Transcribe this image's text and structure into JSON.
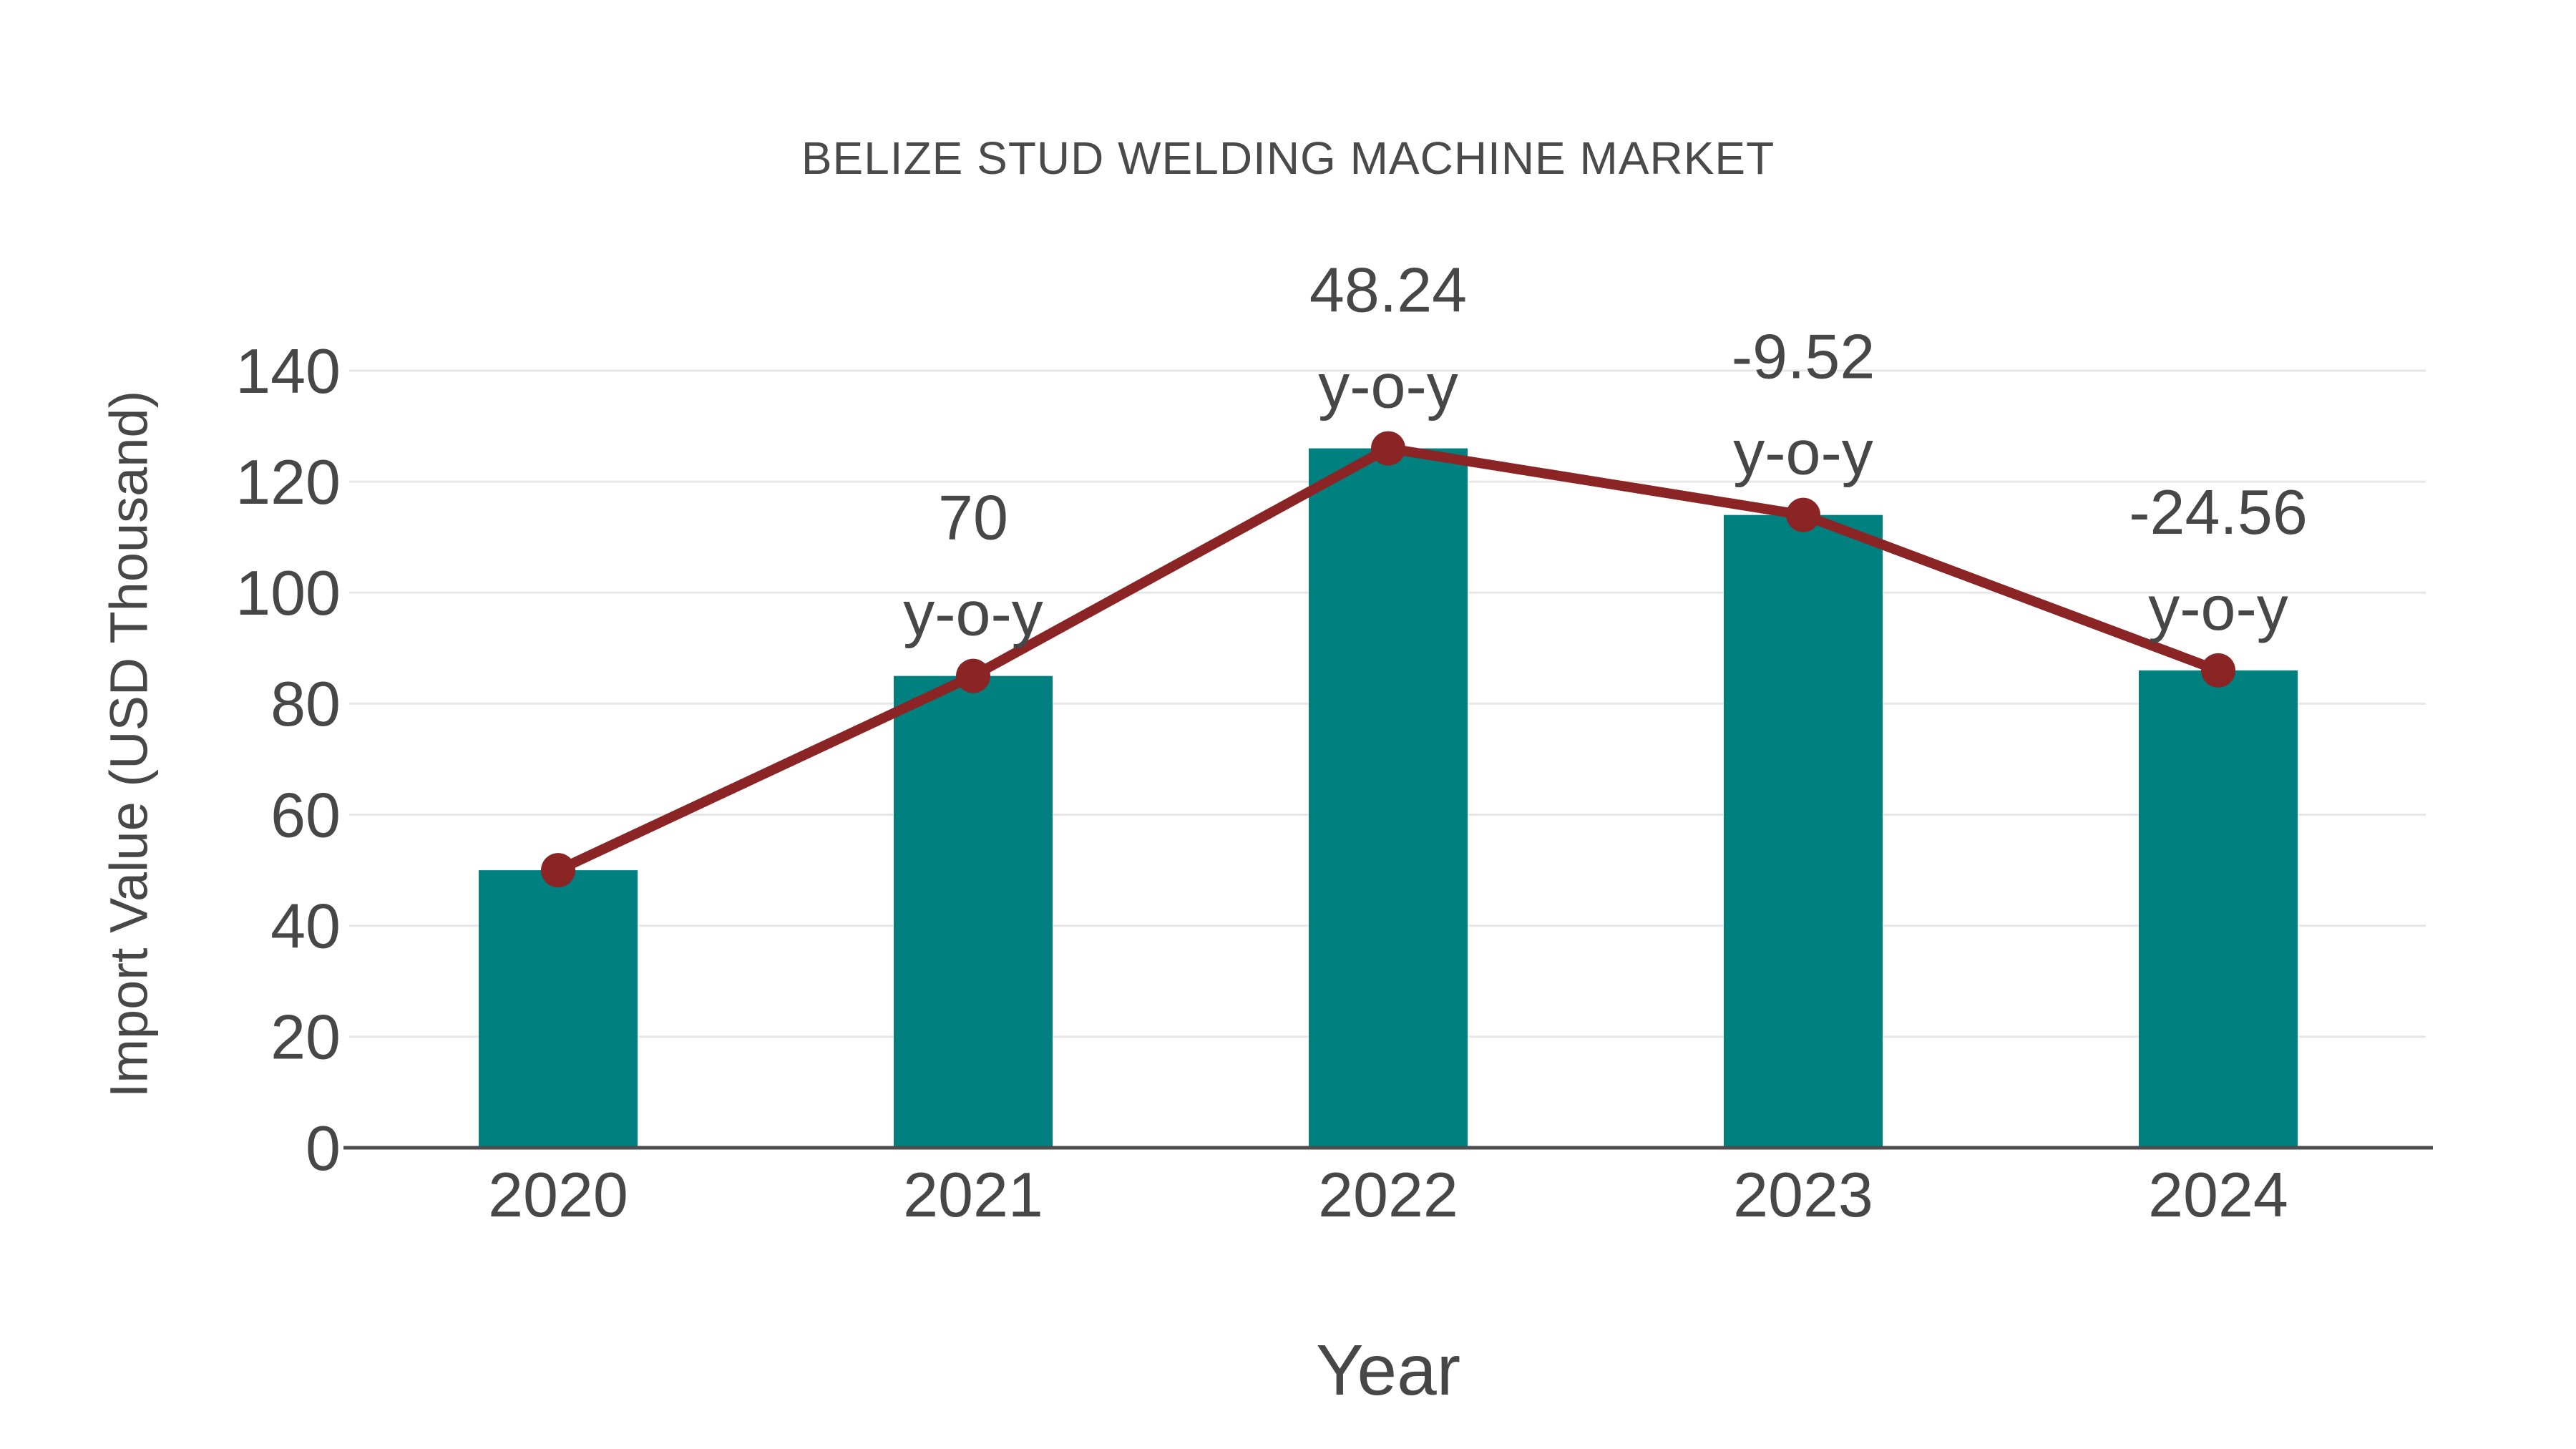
{
  "chart_data": {
    "type": "bar+line",
    "title": "BELIZE STUD WELDING MACHINE MARKET",
    "xlabel": "Year",
    "ylabel": "Import Value (USD Thousand)",
    "categories": [
      "2020",
      "2021",
      "2022",
      "2023",
      "2024"
    ],
    "series": [
      {
        "name": "Import Value (USD Thousand)",
        "type": "bar",
        "values": [
          50,
          85,
          126,
          114,
          86
        ],
        "color": "#018080"
      },
      {
        "name": "y-o-y growth line",
        "type": "line",
        "values": [
          50,
          85,
          126,
          114,
          86
        ],
        "color": "#8b2525"
      }
    ],
    "annotations": [
      {
        "category": "2020",
        "value_label": "",
        "sub_label": ""
      },
      {
        "category": "2021",
        "value_label": "70",
        "sub_label": "y-o-y"
      },
      {
        "category": "2022",
        "value_label": "48.24",
        "sub_label": "y-o-y"
      },
      {
        "category": "2023",
        "value_label": "-9.52",
        "sub_label": "y-o-y"
      },
      {
        "category": "2024",
        "value_label": "-24.56",
        "sub_label": "y-o-y"
      }
    ],
    "yticks": [
      0,
      20,
      40,
      60,
      80,
      100,
      120,
      140
    ],
    "ylim": [
      0,
      140
    ],
    "grid": true,
    "legend_position": "none",
    "colors": {
      "bar": "#018080",
      "line": "#8b2525",
      "text": "#474747",
      "gridline": "#e7e7e7",
      "axis": "#4d4d4d",
      "background": "#ffffff"
    }
  }
}
